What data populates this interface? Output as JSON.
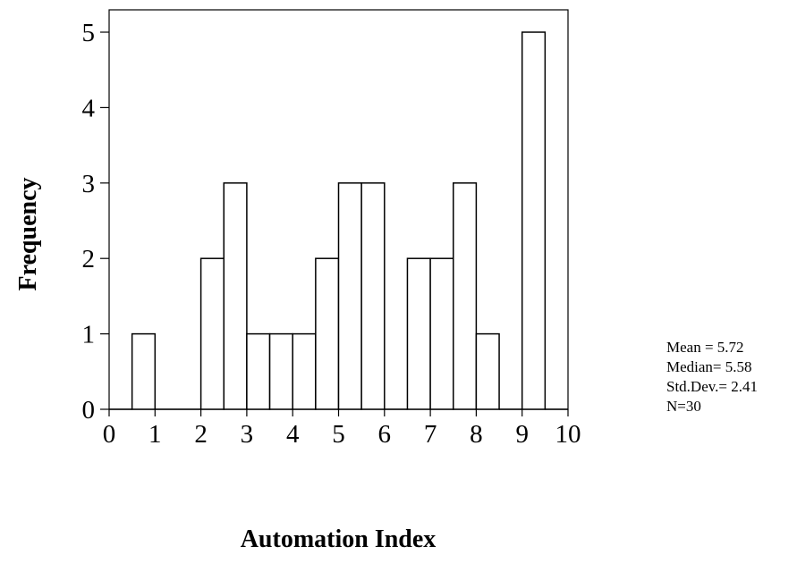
{
  "chart_data": {
    "type": "bar",
    "subtype": "histogram",
    "xlabel": "Automation Index",
    "ylabel": "Frequency",
    "xlim": [
      0,
      10
    ],
    "ylim": [
      0,
      5
    ],
    "x_ticks": [
      "0",
      "1",
      "2",
      "3",
      "4",
      "5",
      "6",
      "7",
      "8",
      "9",
      "10"
    ],
    "y_ticks": [
      "0",
      "1",
      "2",
      "3",
      "4",
      "5"
    ],
    "bin_width": 0.5,
    "bins": [
      {
        "start": 0.0,
        "end": 0.5,
        "count": 0
      },
      {
        "start": 0.5,
        "end": 1.0,
        "count": 1
      },
      {
        "start": 1.0,
        "end": 1.5,
        "count": 0
      },
      {
        "start": 1.5,
        "end": 2.0,
        "count": 0
      },
      {
        "start": 2.0,
        "end": 2.5,
        "count": 2
      },
      {
        "start": 2.5,
        "end": 3.0,
        "count": 3
      },
      {
        "start": 3.0,
        "end": 3.5,
        "count": 1
      },
      {
        "start": 3.5,
        "end": 4.0,
        "count": 1
      },
      {
        "start": 4.0,
        "end": 4.5,
        "count": 1
      },
      {
        "start": 4.5,
        "end": 5.0,
        "count": 2
      },
      {
        "start": 5.0,
        "end": 5.5,
        "count": 3
      },
      {
        "start": 5.5,
        "end": 6.0,
        "count": 3
      },
      {
        "start": 6.0,
        "end": 6.5,
        "count": 0
      },
      {
        "start": 6.5,
        "end": 7.0,
        "count": 2
      },
      {
        "start": 7.0,
        "end": 7.5,
        "count": 2
      },
      {
        "start": 7.5,
        "end": 8.0,
        "count": 3
      },
      {
        "start": 8.0,
        "end": 8.5,
        "count": 1
      },
      {
        "start": 8.5,
        "end": 9.0,
        "count": 0
      },
      {
        "start": 9.0,
        "end": 9.5,
        "count": 5
      },
      {
        "start": 9.5,
        "end": 10.0,
        "count": 0
      }
    ],
    "grid": false,
    "bar_fill": "#ffffff",
    "bar_stroke": "#000000"
  },
  "stats": {
    "mean": "Mean = 5.72",
    "median": "Median= 5.58",
    "std_dev": "Std.Dev.= 2.41",
    "n": "N=30"
  }
}
